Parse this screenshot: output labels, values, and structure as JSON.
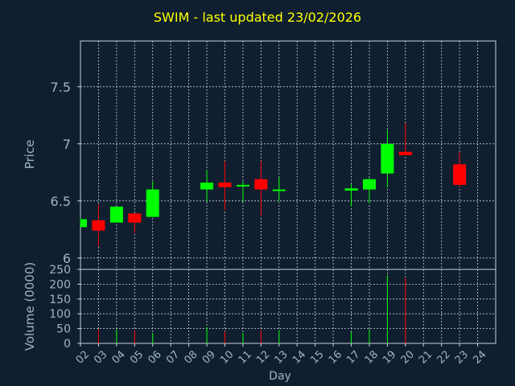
{
  "chart_data": {
    "type": "candlestick",
    "title": "SWIM - last updated 23/02/2026",
    "xlabel": "Day",
    "price_ylabel": "Price",
    "volume_ylabel": "Volume (0000)",
    "price_ylim": [
      5.9,
      7.9
    ],
    "price_ticks": [
      "6",
      "6.5",
      "7",
      "7.5"
    ],
    "volume_ylim": [
      0,
      250
    ],
    "volume_ticks": [
      "0",
      "50",
      "100",
      "150",
      "200",
      "250"
    ],
    "x_ticks": [
      "02",
      "03",
      "04",
      "05",
      "06",
      "07",
      "08",
      "09",
      "10",
      "11",
      "12",
      "13",
      "14",
      "15",
      "16",
      "17",
      "18",
      "19",
      "20",
      "21",
      "22",
      "23",
      "24"
    ],
    "candles": [
      {
        "day": "02",
        "open": 6.27,
        "high": 6.35,
        "low": 6.27,
        "close": 6.34,
        "volume": 0
      },
      {
        "day": "03",
        "open": 6.33,
        "high": 6.47,
        "low": 6.1,
        "close": 6.24,
        "volume": 48
      },
      {
        "day": "04",
        "open": 6.31,
        "high": 6.45,
        "low": 6.31,
        "close": 6.45,
        "volume": 48
      },
      {
        "day": "05",
        "open": 6.39,
        "high": 6.39,
        "low": 6.22,
        "close": 6.31,
        "volume": 45
      },
      {
        "day": "06",
        "open": 6.36,
        "high": 6.67,
        "low": 6.36,
        "close": 6.6,
        "volume": 35
      },
      {
        "day": "09",
        "open": 6.6,
        "high": 6.77,
        "low": 6.49,
        "close": 6.66,
        "volume": 55
      },
      {
        "day": "10",
        "open": 6.66,
        "high": 6.85,
        "low": 6.42,
        "close": 6.62,
        "volume": 40
      },
      {
        "day": "11",
        "open": 6.63,
        "high": 6.67,
        "low": 6.49,
        "close": 6.64,
        "volume": 35
      },
      {
        "day": "12",
        "open": 6.69,
        "high": 6.85,
        "low": 6.37,
        "close": 6.6,
        "volume": 45
      },
      {
        "day": "13",
        "open": 6.59,
        "high": 6.71,
        "low": 6.5,
        "close": 6.6,
        "volume": 45
      },
      {
        "day": "17",
        "open": 6.59,
        "high": 6.65,
        "low": 6.45,
        "close": 6.61,
        "volume": 38
      },
      {
        "day": "18",
        "open": 6.6,
        "high": 6.7,
        "low": 6.48,
        "close": 6.69,
        "volume": 48
      },
      {
        "day": "19",
        "open": 6.74,
        "high": 7.12,
        "low": 6.62,
        "close": 7.0,
        "volume": 230
      },
      {
        "day": "20",
        "open": 6.93,
        "high": 7.18,
        "low": 6.9,
        "close": 6.9,
        "volume": 220
      },
      {
        "day": "23",
        "open": 6.82,
        "high": 6.93,
        "low": 6.62,
        "close": 6.64,
        "volume": 0
      }
    ],
    "up_color": "#00ff00",
    "down_color": "#ff0000",
    "grid": true
  },
  "colors": {
    "background": "#0f1f30",
    "title": "#ffff00",
    "axis_text": "#9fb3c8",
    "grid": "#c8d2dc"
  }
}
